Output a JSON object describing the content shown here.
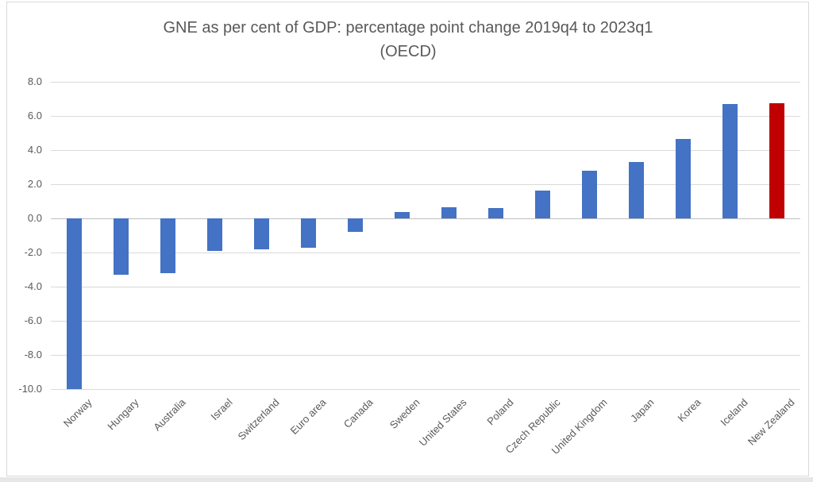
{
  "chart_data": {
    "type": "bar",
    "title": "GNE as per cent of GDP: percentage point change 2019q4 to 2023q1",
    "subtitle": "(OECD)",
    "categories": [
      "Norway",
      "Hungary",
      "Australia",
      "Israel",
      "Switzerland",
      "Euro area",
      "Canada",
      "Sweden",
      "United States",
      "Poland",
      "Czech Republic",
      "United Kingdom",
      "Japan",
      "Korea",
      "Iceland",
      "New Zealand"
    ],
    "values": [
      -10.0,
      -3.3,
      -3.2,
      -1.9,
      -1.8,
      -1.7,
      -0.8,
      0.35,
      0.65,
      0.6,
      1.65,
      2.8,
      3.3,
      4.65,
      6.7,
      6.75
    ],
    "ylim": [
      -10,
      8
    ],
    "ytick_step": 2,
    "ytick_labels": [
      "8.0",
      "6.0",
      "4.0",
      "2.0",
      "0.0",
      "-2.0",
      "-4.0",
      "-6.0",
      "-8.0",
      "-10.0"
    ],
    "xlabel": "",
    "ylabel": "",
    "grid": true,
    "legend": "none",
    "colors": {
      "bar_default": "#4472c4",
      "bar_highlight": "#c00000",
      "highlight_category": "New Zealand",
      "gridline": "#d9d9d9",
      "zero_axis": "#bfbfbf",
      "text": "#595959"
    }
  }
}
